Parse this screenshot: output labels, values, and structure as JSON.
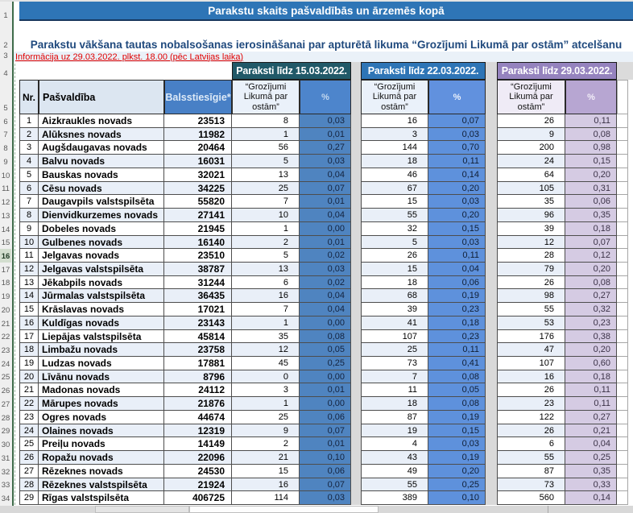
{
  "sheet": {
    "title": "Parakstu skaits pašvaldībās un ārzemēs kopā",
    "subtitle": "Parakstu vākšana tautas nobalsošanas ierosināšanai par apturētā likuma “Grozījumi Likumā par ostām” atcelšanu",
    "info_line": "Informācija uz 29.03.2022. plkst. 18.00 (pēc Latvijas laika)",
    "row_numbers": [
      "1",
      "2",
      "3",
      "4",
      "5",
      "6",
      "7",
      "8",
      "9",
      "10",
      "11",
      "12",
      "13",
      "14",
      "15",
      "16",
      "17",
      "18",
      "19",
      "20",
      "21",
      "22",
      "23",
      "24",
      "25",
      "26",
      "27",
      "28",
      "29",
      "30",
      "31",
      "32",
      "33",
      "34"
    ],
    "active_row_number": "16"
  },
  "groups": [
    {
      "label": "Paraksti līdz 15.03.2022."
    },
    {
      "label": "Paraksti līdz 22.03.2022."
    },
    {
      "label": "Paraksti līdz 29.03.2022."
    }
  ],
  "columns": {
    "nr": "Nr.",
    "municipality": "Pašvaldība",
    "voters": "Balsstiesīgie*",
    "signatures": "“Grozījumi\nLikumā par\nostām”",
    "percent": "%"
  },
  "rows": [
    {
      "nr": "1",
      "name": "Aizkraukles novads",
      "voters": "23513",
      "g15": "8",
      "p15": "0,03",
      "g22": "16",
      "p22": "0,07",
      "g29": "26",
      "p29": "0,11"
    },
    {
      "nr": "2",
      "name": "Alūksnes novads",
      "voters": "11982",
      "g15": "1",
      "p15": "0,01",
      "g22": "3",
      "p22": "0,03",
      "g29": "9",
      "p29": "0,08"
    },
    {
      "nr": "3",
      "name": "Augšdaugavas novads",
      "voters": "20464",
      "g15": "56",
      "p15": "0,27",
      "g22": "144",
      "p22": "0,70",
      "g29": "200",
      "p29": "0,98"
    },
    {
      "nr": "4",
      "name": "Balvu novads",
      "voters": "16031",
      "g15": "5",
      "p15": "0,03",
      "g22": "18",
      "p22": "0,11",
      "g29": "24",
      "p29": "0,15"
    },
    {
      "nr": "5",
      "name": "Bauskas novads",
      "voters": "32021",
      "g15": "13",
      "p15": "0,04",
      "g22": "46",
      "p22": "0,14",
      "g29": "64",
      "p29": "0,20"
    },
    {
      "nr": "6",
      "name": "Cēsu novads",
      "voters": "34225",
      "g15": "25",
      "p15": "0,07",
      "g22": "67",
      "p22": "0,20",
      "g29": "105",
      "p29": "0,31"
    },
    {
      "nr": "7",
      "name": "Daugavpils valstspilsēta",
      "voters": "55820",
      "g15": "7",
      "p15": "0,01",
      "g22": "15",
      "p22": "0,03",
      "g29": "35",
      "p29": "0,06"
    },
    {
      "nr": "8",
      "name": "Dienvidkurzemes novads",
      "voters": "27141",
      "g15": "10",
      "p15": "0,04",
      "g22": "55",
      "p22": "0,20",
      "g29": "96",
      "p29": "0,35"
    },
    {
      "nr": "9",
      "name": "Dobeles novads",
      "voters": "21945",
      "g15": "1",
      "p15": "0,00",
      "g22": "32",
      "p22": "0,15",
      "g29": "39",
      "p29": "0,18"
    },
    {
      "nr": "10",
      "name": "Gulbenes novads",
      "voters": "16140",
      "g15": "2",
      "p15": "0,01",
      "g22": "5",
      "p22": "0,03",
      "g29": "12",
      "p29": "0,07"
    },
    {
      "nr": "11",
      "name": "Jelgavas novads",
      "voters": "23510",
      "g15": "5",
      "p15": "0,02",
      "g22": "26",
      "p22": "0,11",
      "g29": "28",
      "p29": "0,12"
    },
    {
      "nr": "12",
      "name": "Jelgavas valstspilsēta",
      "voters": "38787",
      "g15": "13",
      "p15": "0,03",
      "g22": "15",
      "p22": "0,04",
      "g29": "79",
      "p29": "0,20"
    },
    {
      "nr": "13",
      "name": "Jēkabpils novads",
      "voters": "31244",
      "g15": "6",
      "p15": "0,02",
      "g22": "18",
      "p22": "0,06",
      "g29": "26",
      "p29": "0,08"
    },
    {
      "nr": "14",
      "name": "Jūrmalas valstspilsēta",
      "voters": "36435",
      "g15": "16",
      "p15": "0,04",
      "g22": "68",
      "p22": "0,19",
      "g29": "98",
      "p29": "0,27"
    },
    {
      "nr": "15",
      "name": "Krāslavas novads",
      "voters": "17021",
      "g15": "7",
      "p15": "0,04",
      "g22": "39",
      "p22": "0,23",
      "g29": "55",
      "p29": "0,32"
    },
    {
      "nr": "16",
      "name": "Kuldīgas novads",
      "voters": "23143",
      "g15": "1",
      "p15": "0,00",
      "g22": "41",
      "p22": "0,18",
      "g29": "53",
      "p29": "0,23"
    },
    {
      "nr": "17",
      "name": "Liepājas valstspilsēta",
      "voters": "45814",
      "g15": "35",
      "p15": "0,08",
      "g22": "107",
      "p22": "0,23",
      "g29": "176",
      "p29": "0,38"
    },
    {
      "nr": "18",
      "name": "Limbažu novads",
      "voters": "23758",
      "g15": "12",
      "p15": "0,05",
      "g22": "25",
      "p22": "0,11",
      "g29": "47",
      "p29": "0,20"
    },
    {
      "nr": "19",
      "name": "Ludzas novads",
      "voters": "17881",
      "g15": "45",
      "p15": "0,25",
      "g22": "73",
      "p22": "0,41",
      "g29": "107",
      "p29": "0,60"
    },
    {
      "nr": "20",
      "name": "Līvānu novads",
      "voters": "8796",
      "g15": "0",
      "p15": "0,00",
      "g22": "7",
      "p22": "0,08",
      "g29": "16",
      "p29": "0,18"
    },
    {
      "nr": "21",
      "name": "Madonas novads",
      "voters": "24112",
      "g15": "3",
      "p15": "0,01",
      "g22": "11",
      "p22": "0,05",
      "g29": "26",
      "p29": "0,11"
    },
    {
      "nr": "22",
      "name": "Mārupes novads",
      "voters": "21876",
      "g15": "1",
      "p15": "0,00",
      "g22": "18",
      "p22": "0,08",
      "g29": "23",
      "p29": "0,11"
    },
    {
      "nr": "23",
      "name": "Ogres novads",
      "voters": "44674",
      "g15": "25",
      "p15": "0,06",
      "g22": "87",
      "p22": "0,19",
      "g29": "122",
      "p29": "0,27"
    },
    {
      "nr": "24",
      "name": "Olaines novads",
      "voters": "12319",
      "g15": "9",
      "p15": "0,07",
      "g22": "19",
      "p22": "0,15",
      "g29": "26",
      "p29": "0,21"
    },
    {
      "nr": "25",
      "name": "Preiļu novads",
      "voters": "14149",
      "g15": "2",
      "p15": "0,01",
      "g22": "4",
      "p22": "0,03",
      "g29": "6",
      "p29": "0,04"
    },
    {
      "nr": "26",
      "name": "Ropažu novads",
      "voters": "22096",
      "g15": "21",
      "p15": "0,10",
      "g22": "43",
      "p22": "0,19",
      "g29": "55",
      "p29": "0,25"
    },
    {
      "nr": "27",
      "name": "Rēzeknes novads",
      "voters": "24530",
      "g15": "15",
      "p15": "0,06",
      "g22": "49",
      "p22": "0,20",
      "g29": "87",
      "p29": "0,35"
    },
    {
      "nr": "28",
      "name": "Rēzeknes valstspilsēta",
      "voters": "21924",
      "g15": "16",
      "p15": "0,07",
      "g22": "55",
      "p22": "0,25",
      "g29": "73",
      "p29": "0,33"
    },
    {
      "nr": "29",
      "name": "Rīgas valstspilsēta",
      "voters": "406725",
      "g15": "114",
      "p15": "0,03",
      "g22": "389",
      "p22": "0,10",
      "g29": "560",
      "p29": "0,14"
    }
  ],
  "colors": {
    "title_bg": "#2E75B6",
    "subtitle_color": "#1F497D",
    "info_color": "#E00000",
    "group1_bg": "#215968",
    "group2_bg": "#2E75B6",
    "group3_bg": "#9583BE",
    "hdr_light": "#DCE6F1",
    "voters_hdr_bg": "#4880C6",
    "sig_hdr_bg": "#EAF1FA",
    "sig_hdr_bg_r": "#EFEBF6",
    "p15_hdr_bg": "#4D85CC",
    "p22_hdr_bg": "#6191DE",
    "p29_hdr_bg": "#B7A6D2",
    "p15_cell_bg": "#4F84C0",
    "p22_cell_bg": "#5E91DC",
    "p29_cell_bg": "#D5CBE3",
    "alt_row": "#E9EFF8",
    "gap_bg": "#D9D9D9",
    "grid": "#4D4D4D",
    "rowhdr_bg": "#EFEFEF",
    "rowhdr_text": "#595959",
    "pane_line": "#3E6B4A"
  }
}
